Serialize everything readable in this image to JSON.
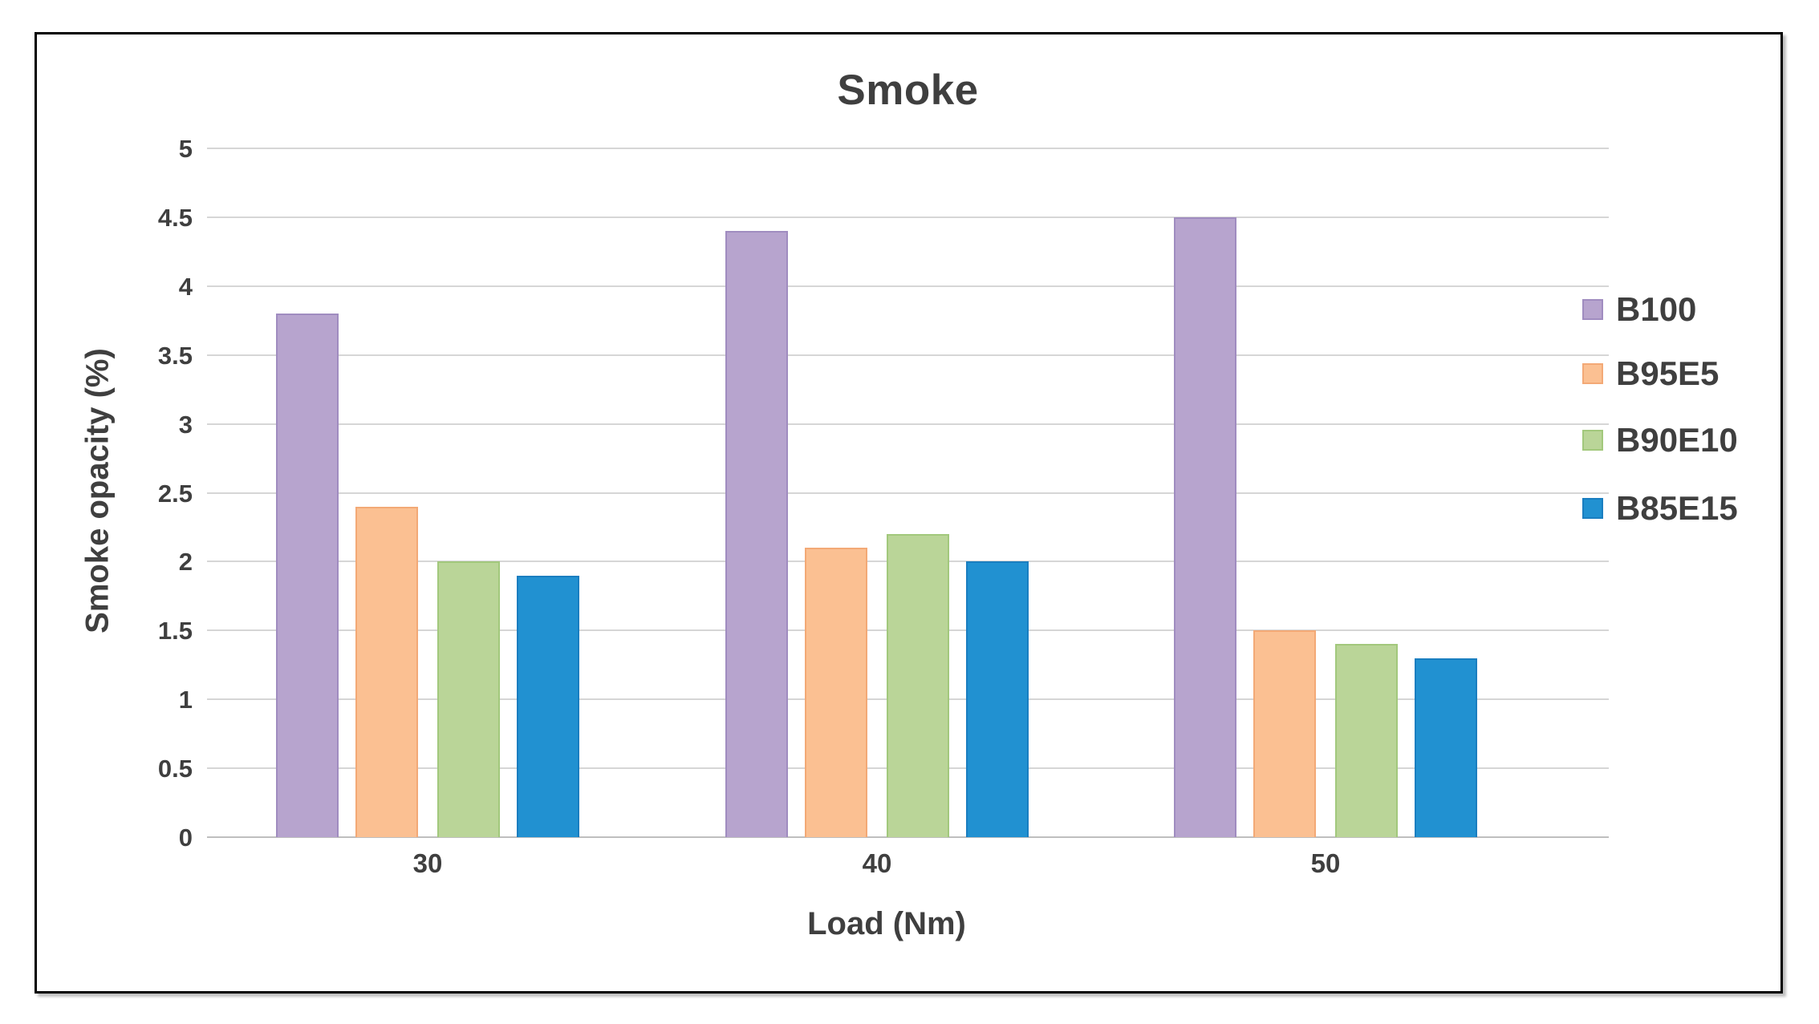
{
  "title": "Smoke",
  "chart_data": {
    "type": "bar",
    "title": "Smoke",
    "categories": [
      "30",
      "40",
      "50"
    ],
    "series": [
      {
        "name": "B100",
        "color": "#b7a4ce",
        "border_color": "#a08cc0",
        "values": [
          3.8,
          4.4,
          4.5
        ]
      },
      {
        "name": "B95E5",
        "color": "#fbc092",
        "border_color": "#f3a976",
        "values": [
          2.4,
          2.1,
          1.5
        ]
      },
      {
        "name": "B90E10",
        "color": "#bad598",
        "border_color": "#a2c87c",
        "values": [
          2.0,
          2.2,
          1.4
        ]
      },
      {
        "name": "B85E15",
        "color": "#2191d1",
        "border_color": "#1a7ec0",
        "values": [
          1.9,
          2.0,
          1.3
        ]
      }
    ],
    "xlabel": "Load (Nm)",
    "ylabel": "Smoke opacity (%)",
    "ylim": [
      0,
      5
    ],
    "ytick_step": 0.5,
    "yticks": [
      "0",
      "0.5",
      "1",
      "1.5",
      "2",
      "2.5",
      "3",
      "3.5",
      "4",
      "4.5",
      "5"
    ],
    "grid": "horizontal",
    "legend_position": "right"
  },
  "colors": {
    "text": "#3f3f3f",
    "gridline": "#d6d6d6",
    "axis_line": "#bfbfbf",
    "figure_border": "#000000",
    "background": "#ffffff"
  }
}
